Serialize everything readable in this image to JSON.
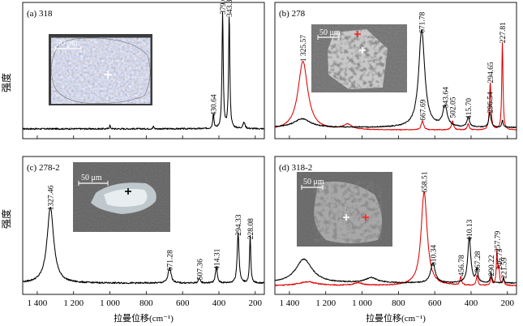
{
  "axes": {
    "ylabel": "强度",
    "xlabel": "拉曼位移(cm⁻¹)",
    "xlim": [
      1480,
      150
    ],
    "xtick_labels": [
      "1 400",
      "1 200",
      "1 000",
      "800",
      "600",
      "400",
      "200"
    ],
    "xtick_values": [
      1400,
      1200,
      1000,
      800,
      600,
      400,
      200
    ]
  },
  "colors": {
    "black_series": "#000000",
    "red_series": "#e00000",
    "cross_white": "#ffffff",
    "cross_red": "#ff2020",
    "cross_black": "#000000"
  },
  "chart_data": [
    {
      "type": "line",
      "panel_label": "(a) 318",
      "scale_bar_label": "50 μm",
      "series": [
        {
          "color": "black",
          "baseline": 0.04,
          "noise": 0.012,
          "peaks": [
            {
              "x": 379.66,
              "h": 0.93,
              "w": 4
            },
            {
              "x": 343.36,
              "h": 0.91,
              "w": 4
            },
            {
              "x": 430.64,
              "h": 0.12,
              "w": 4
            },
            {
              "x": 262,
              "h": 0.05,
              "w": 7
            },
            {
              "x": 1000,
              "h": 0.03,
              "w": 3
            },
            {
              "x": 760,
              "h": 0.02,
              "w": 3
            }
          ]
        }
      ],
      "peak_labels": [
        {
          "text": "379.66",
          "x": 379.66,
          "h": 0.93
        },
        {
          "text": "343.36",
          "x": 343.36,
          "h": 0.91
        },
        {
          "text": "430.64",
          "x": 430.64,
          "h": 0.12
        }
      ]
    },
    {
      "type": "line",
      "panel_label": "(b) 278",
      "scale_bar_label": "50 μm",
      "series": [
        {
          "color": "red",
          "baseline": 0.03,
          "noise": 0.006,
          "peaks": [
            {
              "x": 1325.57,
              "h": 0.55,
              "w": 32
            },
            {
              "x": 227.81,
              "h": 0.7,
              "w": 4
            },
            {
              "x": 294.65,
              "h": 0.38,
              "w": 5
            },
            {
              "x": 502.05,
              "h": 0.07,
              "w": 7
            },
            {
              "x": 667.69,
              "h": 0.07,
              "w": 8
            },
            {
              "x": 415.7,
              "h": 0.05,
              "w": 6
            },
            {
              "x": 1080,
              "h": 0.04,
              "w": 30
            }
          ]
        },
        {
          "color": "black",
          "baseline": 0.05,
          "noise": 0.008,
          "peaks": [
            {
              "x": 671.78,
              "h": 0.78,
              "w": 20
            },
            {
              "x": 543.64,
              "h": 0.16,
              "w": 15
            },
            {
              "x": 296.54,
              "h": 0.12,
              "w": 7
            },
            {
              "x": 415.7,
              "h": 0.08,
              "w": 8
            },
            {
              "x": 1330,
              "h": 0.07,
              "w": 55
            },
            {
              "x": 227.81,
              "h": 0.06,
              "w": 4
            }
          ]
        }
      ],
      "peak_labels": [
        {
          "text": "1 325.57",
          "x": 1325.57,
          "h": 0.55
        },
        {
          "text": "671.78",
          "x": 671.78,
          "h": 0.78
        },
        {
          "text": "543.64",
          "x": 543.64,
          "h": 0.18
        },
        {
          "text": "667.69",
          "x": 667.69,
          "h": 0.08
        },
        {
          "text": "502.05",
          "x": 502.05,
          "h": 0.1
        },
        {
          "text": "415.70",
          "x": 415.7,
          "h": 0.09
        },
        {
          "text": "296.54",
          "x": 296.54,
          "h": 0.14
        },
        {
          "text": "294.65",
          "x": 294.65,
          "h": 0.38
        },
        {
          "text": "227.81",
          "x": 227.81,
          "h": 0.7
        }
      ]
    },
    {
      "type": "line",
      "panel_label": "(c) 278-2",
      "scale_bar_label": "50 μm",
      "series": [
        {
          "color": "black",
          "baseline": 0.05,
          "noise": 0.012,
          "peaks": [
            {
              "x": 1327.46,
              "h": 0.6,
              "w": 22
            },
            {
              "x": 294.33,
              "h": 0.4,
              "w": 6
            },
            {
              "x": 228.08,
              "h": 0.37,
              "w": 4
            },
            {
              "x": 671.28,
              "h": 0.12,
              "w": 10
            },
            {
              "x": 414.31,
              "h": 0.13,
              "w": 6
            },
            {
              "x": 507.36,
              "h": 0.04,
              "w": 6
            }
          ]
        }
      ],
      "peak_labels": [
        {
          "text": "1327.46",
          "x": 1327.46,
          "h": 0.6
        },
        {
          "text": "671.28",
          "x": 671.28,
          "h": 0.12
        },
        {
          "text": "507.36",
          "x": 507.36,
          "h": 0.05
        },
        {
          "text": "414.31",
          "x": 414.31,
          "h": 0.13
        },
        {
          "text": "294.33",
          "x": 294.33,
          "h": 0.4
        },
        {
          "text": "228.08",
          "x": 228.08,
          "h": 0.37
        }
      ]
    },
    {
      "type": "line",
      "panel_label": "(d) 318-2",
      "scale_bar_label": "50 μm",
      "series": [
        {
          "color": "red",
          "baseline": 0.03,
          "noise": 0.008,
          "peaks": [
            {
              "x": 658.51,
              "h": 0.74,
              "w": 20
            },
            {
              "x": 456.78,
              "h": 0.07,
              "w": 5
            },
            {
              "x": 367.28,
              "h": 0.08,
              "w": 5
            },
            {
              "x": 290.22,
              "h": 0.06,
              "w": 5
            },
            {
              "x": 257.79,
              "h": 0.27,
              "w": 4
            },
            {
              "x": 246.73,
              "h": 0.13,
              "w": 4
            },
            {
              "x": 221.59,
              "h": 0.06,
              "w": 4
            },
            {
              "x": 1300,
              "h": 0.03,
              "w": 60
            },
            {
              "x": 1020,
              "h": 0.02,
              "w": 30
            }
          ]
        },
        {
          "color": "black",
          "baseline": 0.05,
          "noise": 0.008,
          "peaks": [
            {
              "x": 1320,
              "h": 0.19,
              "w": 55
            },
            {
              "x": 610.34,
              "h": 0.16,
              "w": 15
            },
            {
              "x": 410.13,
              "h": 0.36,
              "w": 10
            },
            {
              "x": 367.28,
              "h": 0.11,
              "w": 6
            },
            {
              "x": 290.22,
              "h": 0.08,
              "w": 5
            },
            {
              "x": 221.59,
              "h": 0.04,
              "w": 4
            },
            {
              "x": 950,
              "h": 0.04,
              "w": 40
            }
          ]
        }
      ],
      "peak_labels": [
        {
          "text": "658.51",
          "x": 658.51,
          "h": 0.74
        },
        {
          "text": "610.34",
          "x": 610.34,
          "h": 0.16
        },
        {
          "text": "456.78",
          "x": 456.78,
          "h": 0.08
        },
        {
          "text": "410.13",
          "x": 410.13,
          "h": 0.36
        },
        {
          "text": "367.28",
          "x": 367.28,
          "h": 0.11
        },
        {
          "text": "290.22",
          "x": 290.22,
          "h": 0.08
        },
        {
          "text": "257.79",
          "x": 257.79,
          "h": 0.27
        },
        {
          "text": "246.73",
          "x": 246.73,
          "h": 0.13
        },
        {
          "text": "221.59",
          "x": 221.59,
          "h": 0.06
        }
      ]
    }
  ]
}
